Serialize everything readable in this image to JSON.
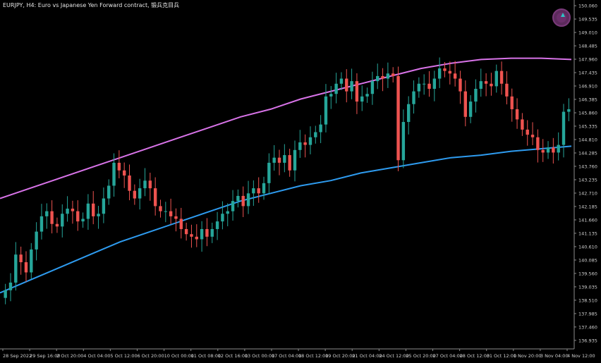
{
  "title": "EURJPY, H4:  Euro vs Japanese Yen Forward contract, 锻兵克目兵",
  "colors": {
    "background": "#000000",
    "up_candle": "#26a69a",
    "down_candle": "#ef5350",
    "upper_band": "#d873e8",
    "lower_band": "#2e9bef",
    "axis": "#8c8c8c",
    "label": "#d0d0d0"
  },
  "trade_button_icon": "one-click-trading-icon",
  "chart_data": {
    "type": "candlestick",
    "symbol": "EURJPY",
    "timeframe": "H4",
    "ylim": [
      136.6,
      150.2
    ],
    "y_ticks": [
      "150.060",
      "149.535",
      "149.010",
      "148.485",
      "147.960",
      "147.435",
      "146.910",
      "146.385",
      "145.860",
      "145.335",
      "144.810",
      "144.285",
      "143.760",
      "143.235",
      "142.710",
      "142.185",
      "141.660",
      "141.135",
      "140.610",
      "140.085",
      "139.560",
      "139.035",
      "138.510",
      "137.985",
      "137.460",
      "136.935"
    ],
    "x_ticks": [
      "28 Sep 2022",
      "29 Sep 16:00",
      "2 Oct 20:00",
      "4 Oct 04:00",
      "5 Oct 12:00",
      "6 Oct 20:00",
      "10 Oct 00:00",
      "11 Oct 08:00",
      "12 Oct 16:00",
      "13 Oct 00:00",
      "17 Oct 04:00",
      "18 Oct 12:00",
      "19 Oct 20:00",
      "21 Oct 04:00",
      "24 Oct 12:00",
      "25 Oct 20:00",
      "27 Oct 04:00",
      "28 Oct 12:00",
      "31 Oct 12:00",
      "1 Nov 20:00",
      "3 Nov 04:00",
      "4 Nov 12:00"
    ],
    "close": [
      138.9,
      139.2,
      140.3,
      140.0,
      139.6,
      140.5,
      141.2,
      141.8,
      142.0,
      141.5,
      141.4,
      141.9,
      142.1,
      142.0,
      141.6,
      141.7,
      142.3,
      141.8,
      141.9,
      142.5,
      143.0,
      143.9,
      143.6,
      143.4,
      142.8,
      142.5,
      142.9,
      143.2,
      142.9,
      142.2,
      142.0,
      142.0,
      141.8,
      141.7,
      141.3,
      141.1,
      141.0,
      140.9,
      141.3,
      141.0,
      141.3,
      141.6,
      141.9,
      142.0,
      142.4,
      142.6,
      142.2,
      142.7,
      142.9,
      142.7,
      143.1,
      143.9,
      144.1,
      143.9,
      144.2,
      143.6,
      144.4,
      144.7,
      144.6,
      144.9,
      145.1,
      145.4,
      146.5,
      146.6,
      147.0,
      147.2,
      146.7,
      147.1,
      146.3,
      146.5,
      146.6,
      147.1,
      147.3,
      147.2,
      147.4,
      147.3,
      144.0,
      145.5,
      146.2,
      146.7,
      147.0,
      147.0,
      146.8,
      147.2,
      147.6,
      147.5,
      147.4,
      147.2,
      146.7,
      145.7,
      146.3,
      146.8,
      147.1,
      147.0,
      146.9,
      147.5,
      147.0,
      146.5,
      146.0,
      145.6,
      145.2,
      145.0,
      144.9,
      144.4,
      144.3,
      144.5,
      144.3,
      144.6,
      145.9,
      146.0
    ],
    "open": [
      138.6,
      138.9,
      139.2,
      140.3,
      140.0,
      139.6,
      140.5,
      141.2,
      141.8,
      142.0,
      141.5,
      141.4,
      141.9,
      142.1,
      142.0,
      141.6,
      141.7,
      142.3,
      141.8,
      141.9,
      142.5,
      143.0,
      143.9,
      143.6,
      143.4,
      142.8,
      142.5,
      142.9,
      143.2,
      142.9,
      142.2,
      142.0,
      142.0,
      141.8,
      141.7,
      141.3,
      141.1,
      141.0,
      140.9,
      141.3,
      141.0,
      141.3,
      141.6,
      141.9,
      142.0,
      142.4,
      142.6,
      142.2,
      142.7,
      142.9,
      142.7,
      143.1,
      143.9,
      144.1,
      143.9,
      144.2,
      143.6,
      144.4,
      144.7,
      144.6,
      144.9,
      145.1,
      145.4,
      146.5,
      146.6,
      147.0,
      147.2,
      146.7,
      147.1,
      146.3,
      146.5,
      146.6,
      147.1,
      147.3,
      147.2,
      147.4,
      147.3,
      144.0,
      145.5,
      146.2,
      146.7,
      147.0,
      147.0,
      146.8,
      147.2,
      147.6,
      147.5,
      147.4,
      147.2,
      146.7,
      145.7,
      146.3,
      146.8,
      147.1,
      147.0,
      146.9,
      147.5,
      147.0,
      146.5,
      146.0,
      145.6,
      145.2,
      145.0,
      144.9,
      144.4,
      144.3,
      144.5,
      144.3,
      144.6,
      145.9
    ],
    "upper_band": [
      142.5,
      142.9,
      143.3,
      143.7,
      144.1,
      144.5,
      144.9,
      145.3,
      145.7,
      146.0,
      146.4,
      146.7,
      147.0,
      147.3,
      147.6,
      147.8,
      147.95,
      148.0,
      148.0,
      147.95
    ],
    "lower_band": [
      138.8,
      139.3,
      139.8,
      140.3,
      140.8,
      141.2,
      141.6,
      142.0,
      142.4,
      142.7,
      143.0,
      143.2,
      143.5,
      143.7,
      143.9,
      144.1,
      144.2,
      144.35,
      144.45,
      144.55
    ]
  }
}
